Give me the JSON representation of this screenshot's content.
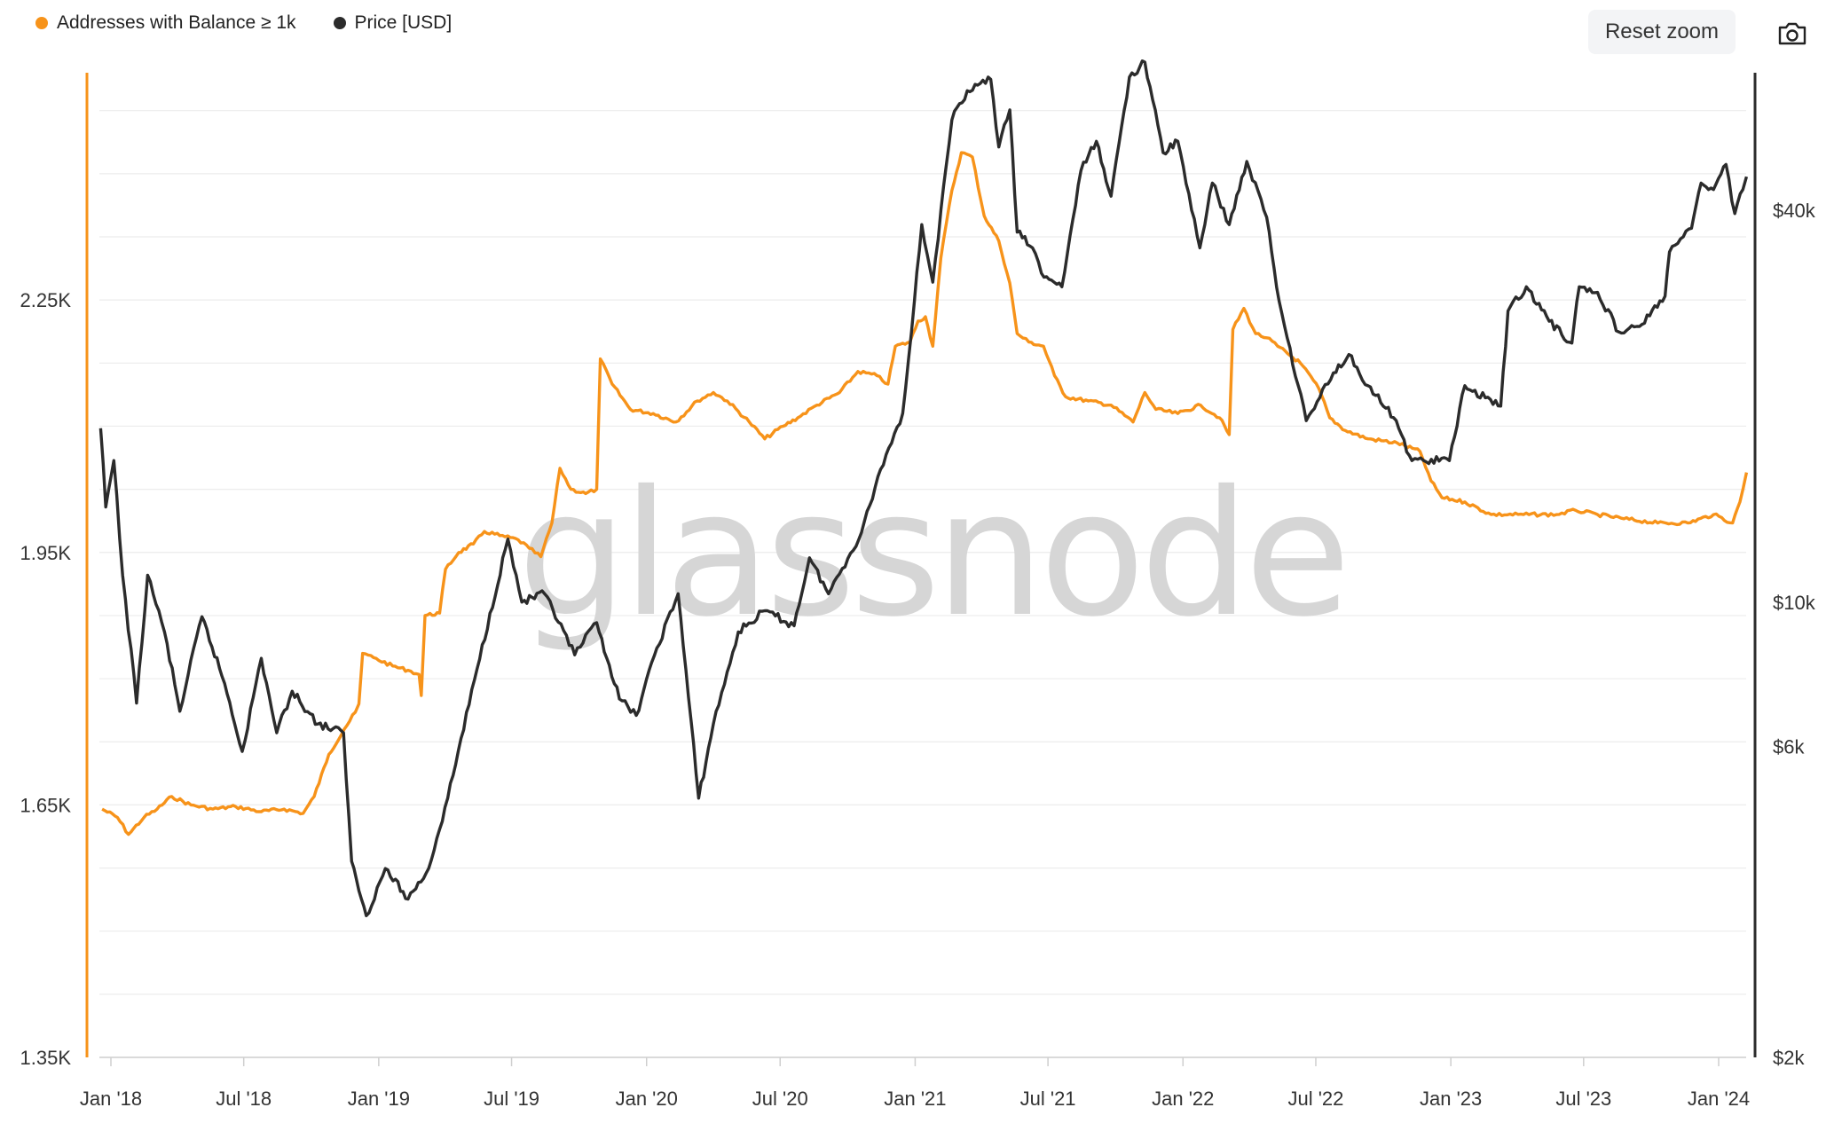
{
  "legend": {
    "series1": "Addresses with Balance ≥ 1k",
    "series2": "Price [USD]"
  },
  "toolbar": {
    "reset_zoom": "Reset zoom",
    "camera_icon": "camera-icon"
  },
  "watermark": "glassnode",
  "colors": {
    "addresses": "#f7931a",
    "price": "#2b2b2b",
    "grid": "#ececec"
  },
  "chart_data": {
    "type": "line",
    "x_ticks": [
      "Jan '18",
      "Jul '18",
      "Jan '19",
      "Jul '19",
      "Jan '20",
      "Jul '20",
      "Jan '21",
      "Jul '21",
      "Jan '22",
      "Jul '22",
      "Jan '23",
      "Jul '23",
      "Jan '24"
    ],
    "left_axis": {
      "ticks": [
        "1.35K",
        "1.65K",
        "1.95K",
        "2.25K"
      ],
      "ylim": [
        1350,
        2520
      ]
    },
    "right_axis": {
      "scale": "log",
      "ticks": [
        "$2k",
        "$6k",
        "$10k",
        "$40k"
      ],
      "ylim": [
        2000,
        65000
      ]
    },
    "grid": true,
    "legend_position": "top-left",
    "series": [
      {
        "name": "Addresses with Balance ≥ 1k",
        "axis": "left",
        "color": "#f7931a",
        "points": [
          [
            "2017-12-20",
            1645
          ],
          [
            "2018-01-10",
            1635
          ],
          [
            "2018-01-25",
            1615
          ],
          [
            "2018-02-15",
            1635
          ],
          [
            "2018-03-05",
            1645
          ],
          [
            "2018-03-25",
            1660
          ],
          [
            "2018-04-20",
            1650
          ],
          [
            "2018-05-20",
            1645
          ],
          [
            "2018-06-20",
            1648
          ],
          [
            "2018-07-25",
            1642
          ],
          [
            "2018-08-25",
            1645
          ],
          [
            "2018-09-20",
            1640
          ],
          [
            "2018-10-05",
            1660
          ],
          [
            "2018-10-25",
            1710
          ],
          [
            "2018-11-15",
            1740
          ],
          [
            "2018-11-30",
            1760
          ],
          [
            "2018-12-05",
            1770
          ],
          [
            "2018-12-10",
            1830
          ],
          [
            "2018-12-25",
            1825
          ],
          [
            "2019-01-20",
            1815
          ],
          [
            "2019-02-10",
            1810
          ],
          [
            "2019-02-25",
            1805
          ],
          [
            "2019-02-28",
            1780
          ],
          [
            "2019-03-05",
            1875
          ],
          [
            "2019-03-25",
            1878
          ],
          [
            "2019-04-02",
            1930
          ],
          [
            "2019-04-20",
            1950
          ],
          [
            "2019-05-10",
            1960
          ],
          [
            "2019-05-25",
            1975
          ],
          [
            "2019-06-15",
            1970
          ],
          [
            "2019-07-10",
            1965
          ],
          [
            "2019-07-25",
            1955
          ],
          [
            "2019-08-10",
            1945
          ],
          [
            "2019-08-25",
            1985
          ],
          [
            "2019-09-05",
            2050
          ],
          [
            "2019-09-20",
            2025
          ],
          [
            "2019-10-10",
            2020
          ],
          [
            "2019-10-25",
            2025
          ],
          [
            "2019-10-30",
            2180
          ],
          [
            "2019-11-15",
            2150
          ],
          [
            "2019-12-10",
            2120
          ],
          [
            "2020-01-10",
            2115
          ],
          [
            "2020-02-10",
            2105
          ],
          [
            "2020-03-10",
            2130
          ],
          [
            "2020-04-01",
            2140
          ],
          [
            "2020-04-20",
            2130
          ],
          [
            "2020-05-20",
            2105
          ],
          [
            "2020-06-10",
            2085
          ],
          [
            "2020-07-05",
            2100
          ],
          [
            "2020-07-25",
            2110
          ],
          [
            "2020-08-20",
            2125
          ],
          [
            "2020-09-20",
            2140
          ],
          [
            "2020-10-15",
            2165
          ],
          [
            "2020-11-10",
            2160
          ],
          [
            "2020-11-25",
            2150
          ],
          [
            "2020-12-05",
            2195
          ],
          [
            "2020-12-25",
            2200
          ],
          [
            "2021-01-05",
            2225
          ],
          [
            "2021-01-15",
            2230
          ],
          [
            "2021-01-25",
            2195
          ],
          [
            "2021-02-05",
            2300
          ],
          [
            "2021-02-20",
            2380
          ],
          [
            "2021-03-05",
            2425
          ],
          [
            "2021-03-20",
            2420
          ],
          [
            "2021-04-05",
            2350
          ],
          [
            "2021-04-25",
            2320
          ],
          [
            "2021-05-10",
            2270
          ],
          [
            "2021-05-20",
            2210
          ],
          [
            "2021-06-05",
            2200
          ],
          [
            "2021-06-25",
            2195
          ],
          [
            "2021-07-10",
            2160
          ],
          [
            "2021-07-25",
            2135
          ],
          [
            "2021-08-25",
            2130
          ],
          [
            "2021-09-25",
            2125
          ],
          [
            "2021-10-25",
            2105
          ],
          [
            "2021-11-10",
            2140
          ],
          [
            "2021-11-25",
            2120
          ],
          [
            "2021-12-25",
            2115
          ],
          [
            "2022-01-25",
            2125
          ],
          [
            "2022-02-20",
            2110
          ],
          [
            "2022-03-05",
            2090
          ],
          [
            "2022-03-10",
            2215
          ],
          [
            "2022-03-25",
            2240
          ],
          [
            "2022-04-10",
            2210
          ],
          [
            "2022-04-25",
            2205
          ],
          [
            "2022-05-10",
            2195
          ],
          [
            "2022-06-10",
            2175
          ],
          [
            "2022-07-05",
            2145
          ],
          [
            "2022-07-20",
            2110
          ],
          [
            "2022-08-10",
            2095
          ],
          [
            "2022-09-10",
            2085
          ],
          [
            "2022-10-20",
            2080
          ],
          [
            "2022-11-20",
            2070
          ],
          [
            "2022-12-05",
            2035
          ],
          [
            "2022-12-20",
            2015
          ],
          [
            "2023-01-20",
            2010
          ],
          [
            "2023-02-25",
            1995
          ],
          [
            "2023-04-10",
            1995
          ],
          [
            "2023-05-25",
            1995
          ],
          [
            "2023-06-20",
            2000
          ],
          [
            "2023-07-20",
            1995
          ],
          [
            "2023-08-25",
            1990
          ],
          [
            "2023-10-10",
            1985
          ],
          [
            "2023-11-20",
            1985
          ],
          [
            "2023-12-25",
            1995
          ],
          [
            "2024-01-20",
            1985
          ],
          [
            "2024-01-30",
            2010
          ],
          [
            "2024-02-08",
            2045
          ]
        ]
      },
      {
        "name": "Price [USD]",
        "axis": "right",
        "color": "#2b2b2b",
        "points": [
          [
            "2017-12-18",
            18500
          ],
          [
            "2017-12-25",
            14000
          ],
          [
            "2018-01-05",
            16500
          ],
          [
            "2018-01-17",
            11000
          ],
          [
            "2018-02-05",
            7000
          ],
          [
            "2018-02-20",
            11000
          ],
          [
            "2018-03-15",
            9000
          ],
          [
            "2018-04-05",
            6800
          ],
          [
            "2018-05-05",
            9500
          ],
          [
            "2018-06-05",
            7500
          ],
          [
            "2018-06-29",
            5900
          ],
          [
            "2018-07-25",
            8200
          ],
          [
            "2018-08-15",
            6300
          ],
          [
            "2018-09-05",
            7300
          ],
          [
            "2018-10-10",
            6500
          ],
          [
            "2018-11-14",
            6300
          ],
          [
            "2018-11-25",
            4000
          ],
          [
            "2018-12-15",
            3300
          ],
          [
            "2019-01-10",
            3900
          ],
          [
            "2019-02-10",
            3500
          ],
          [
            "2019-03-10",
            3900
          ],
          [
            "2019-04-05",
            5000
          ],
          [
            "2019-05-15",
            7900
          ],
          [
            "2019-06-26",
            12500
          ],
          [
            "2019-07-15",
            10000
          ],
          [
            "2019-08-15",
            10300
          ],
          [
            "2019-09-25",
            8300
          ],
          [
            "2019-10-25",
            9300
          ],
          [
            "2019-11-25",
            7100
          ],
          [
            "2019-12-18",
            6700
          ],
          [
            "2020-01-15",
            8500
          ],
          [
            "2020-02-13",
            10300
          ],
          [
            "2020-03-12",
            5000
          ],
          [
            "2020-04-01",
            6500
          ],
          [
            "2020-05-05",
            9000
          ],
          [
            "2020-06-10",
            9700
          ],
          [
            "2020-07-20",
            9200
          ],
          [
            "2020-08-10",
            11700
          ],
          [
            "2020-09-05",
            10300
          ],
          [
            "2020-10-20",
            12800
          ],
          [
            "2020-11-15",
            16000
          ],
          [
            "2020-12-15",
            19500
          ],
          [
            "2020-12-31",
            29000
          ],
          [
            "2021-01-10",
            38000
          ],
          [
            "2021-01-25",
            31000
          ],
          [
            "2021-02-20",
            55000
          ],
          [
            "2021-03-13",
            61000
          ],
          [
            "2021-04-14",
            63500
          ],
          [
            "2021-04-25",
            50000
          ],
          [
            "2021-05-10",
            57000
          ],
          [
            "2021-05-20",
            37000
          ],
          [
            "2021-06-10",
            35000
          ],
          [
            "2021-06-22",
            32000
          ],
          [
            "2021-07-20",
            30500
          ],
          [
            "2021-08-15",
            46000
          ],
          [
            "2021-09-05",
            51000
          ],
          [
            "2021-09-25",
            42000
          ],
          [
            "2021-10-20",
            64000
          ],
          [
            "2021-11-10",
            67500
          ],
          [
            "2021-12-05",
            49000
          ],
          [
            "2021-12-25",
            51000
          ],
          [
            "2022-01-24",
            35000
          ],
          [
            "2022-02-10",
            44000
          ],
          [
            "2022-03-05",
            38000
          ],
          [
            "2022-03-29",
            47500
          ],
          [
            "2022-04-25",
            39000
          ],
          [
            "2022-05-12",
            29000
          ],
          [
            "2022-06-18",
            19000
          ],
          [
            "2022-07-25",
            22500
          ],
          [
            "2022-08-15",
            24000
          ],
          [
            "2022-09-10",
            21500
          ],
          [
            "2022-10-15",
            19200
          ],
          [
            "2022-11-09",
            16500
          ],
          [
            "2022-11-25",
            16500
          ],
          [
            "2022-12-30",
            16500
          ],
          [
            "2023-01-20",
            21500
          ],
          [
            "2023-03-10",
            20000
          ],
          [
            "2023-03-20",
            28000
          ],
          [
            "2023-04-14",
            30500
          ],
          [
            "2023-05-15",
            27000
          ],
          [
            "2023-06-15",
            25000
          ],
          [
            "2023-06-25",
            30500
          ],
          [
            "2023-07-20",
            29900
          ],
          [
            "2023-08-18",
            26000
          ],
          [
            "2023-09-15",
            26500
          ],
          [
            "2023-10-20",
            29500
          ],
          [
            "2023-10-26",
            34500
          ],
          [
            "2023-11-25",
            37500
          ],
          [
            "2023-12-08",
            44000
          ],
          [
            "2023-12-25",
            43000
          ],
          [
            "2024-01-11",
            47000
          ],
          [
            "2024-01-23",
            39500
          ],
          [
            "2024-02-03",
            43000
          ],
          [
            "2024-02-08",
            45000
          ]
        ]
      }
    ]
  }
}
